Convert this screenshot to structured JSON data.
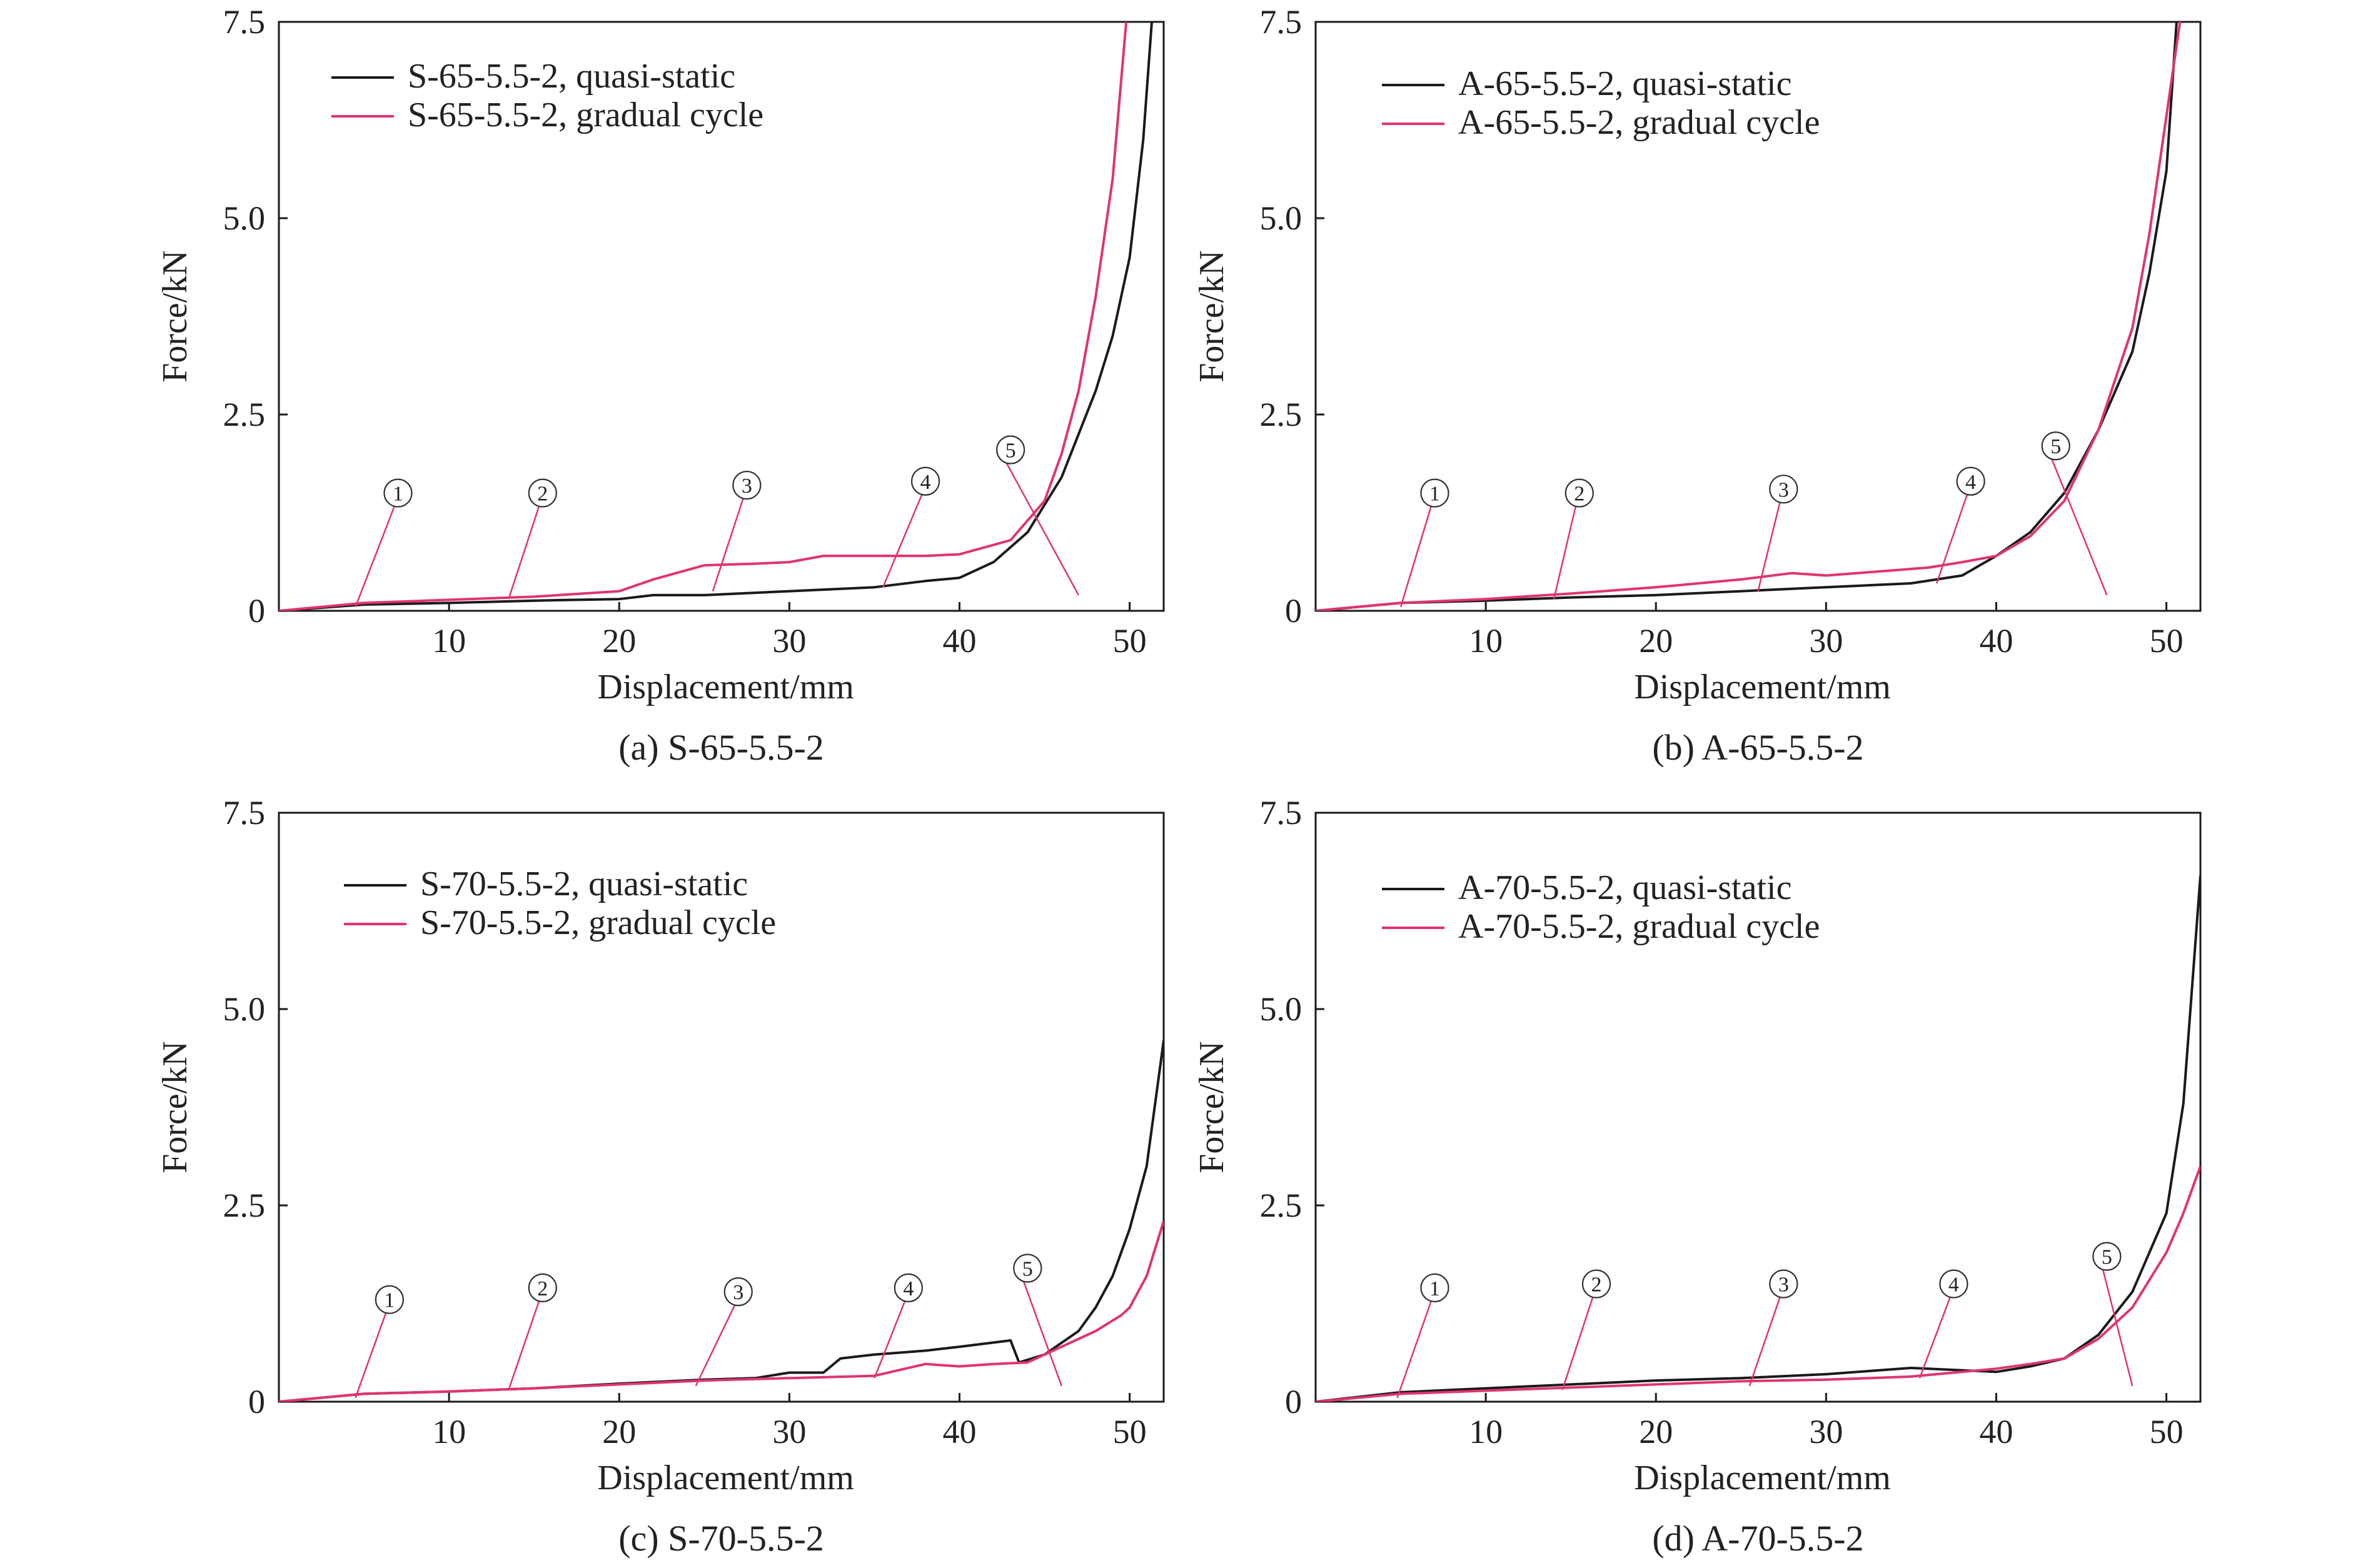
{
  "colors": {
    "quasi_static": "#1a1a1a",
    "gradual_cycle": "#e0356b",
    "gradual_cycle_inner": "#e8551f",
    "axis": "#1a1a1a"
  },
  "chart_data": [
    {
      "type": "line",
      "caption": "(a) S-65-5.5-2",
      "xlabel": "Displacement/mm",
      "ylabel": "Force/kN",
      "xlim": [
        0,
        52
      ],
      "ylim": [
        0,
        7.5
      ],
      "xticks": [
        "10",
        "20",
        "30",
        "40",
        "50"
      ],
      "yticks": [
        "0",
        "2.5",
        "5.0",
        "7.5"
      ],
      "legend_position": "top-left",
      "series": [
        {
          "name": "S-65-5.5-2, quasi-static",
          "role": "quasi_static",
          "points": [
            [
              0,
              0
            ],
            [
              5,
              0.08
            ],
            [
              10,
              0.1
            ],
            [
              15,
              0.13
            ],
            [
              20,
              0.15
            ],
            [
              22,
              0.2
            ],
            [
              25,
              0.2
            ],
            [
              30,
              0.25
            ],
            [
              35,
              0.3
            ],
            [
              38,
              0.38
            ],
            [
              40,
              0.42
            ],
            [
              42,
              0.62
            ],
            [
              44,
              1.0
            ],
            [
              46,
              1.7
            ],
            [
              48,
              2.8
            ],
            [
              49,
              3.5
            ],
            [
              50,
              4.5
            ],
            [
              50.8,
              6
            ],
            [
              51.3,
              7.5
            ]
          ]
        },
        {
          "name": "S-65-5.5-2, gradual cycle",
          "role": "gradual_cycle",
          "points": [
            [
              0,
              0
            ],
            [
              5,
              0.1
            ],
            [
              10,
              0.14
            ],
            [
              15,
              0.18
            ],
            [
              20,
              0.25
            ],
            [
              22,
              0.4
            ],
            [
              25,
              0.58
            ],
            [
              28,
              0.6
            ],
            [
              30,
              0.62
            ],
            [
              32,
              0.7
            ],
            [
              35,
              0.7
            ],
            [
              38,
              0.7
            ],
            [
              40,
              0.72
            ],
            [
              43,
              0.9
            ],
            [
              45,
              1.4
            ],
            [
              46,
              2.0
            ],
            [
              47,
              2.8
            ],
            [
              48,
              4.0
            ],
            [
              49,
              5.5
            ],
            [
              49.8,
              7.5
            ]
          ]
        }
      ],
      "annotations": [
        {
          "label": "①",
          "x_mm": 7.0,
          "y_kN": 1.5,
          "target": [
            4.5,
            0.05
          ]
        },
        {
          "label": "②",
          "x_mm": 15.5,
          "y_kN": 1.5,
          "target": [
            13.5,
            0.15
          ]
        },
        {
          "label": "③",
          "x_mm": 27.5,
          "y_kN": 1.6,
          "target": [
            25.5,
            0.25
          ]
        },
        {
          "label": "④",
          "x_mm": 38.0,
          "y_kN": 1.65,
          "target": [
            35.5,
            0.3
          ]
        },
        {
          "label": "⑤",
          "x_mm": 43.0,
          "y_kN": 2.05,
          "target": [
            47,
            0.2
          ]
        }
      ]
    },
    {
      "type": "line",
      "caption": "(b) A-65-5.5-2",
      "xlabel": "Displacement/mm",
      "ylabel": "Force/kN",
      "xlim": [
        0,
        52
      ],
      "ylim": [
        0,
        7.5
      ],
      "xticks": [
        "10",
        "20",
        "30",
        "40",
        "50"
      ],
      "yticks": [
        "0",
        "2.5",
        "5.0",
        "7.5"
      ],
      "legend_position": "top-left",
      "series": [
        {
          "name": "A-65-5.5-2, quasi-static",
          "role": "quasi_static",
          "points": [
            [
              0,
              0
            ],
            [
              5,
              0.1
            ],
            [
              10,
              0.13
            ],
            [
              15,
              0.17
            ],
            [
              20,
              0.2
            ],
            [
              25,
              0.25
            ],
            [
              30,
              0.3
            ],
            [
              35,
              0.35
            ],
            [
              38,
              0.45
            ],
            [
              40,
              0.7
            ],
            [
              42,
              1.0
            ],
            [
              44,
              1.5
            ],
            [
              46,
              2.3
            ],
            [
              48,
              3.3
            ],
            [
              49,
              4.3
            ],
            [
              50,
              5.6
            ],
            [
              50.6,
              7.5
            ]
          ]
        },
        {
          "name": "A-65-5.5-2, gradual cycle",
          "role": "gradual_cycle",
          "points": [
            [
              0,
              0
            ],
            [
              5,
              0.1
            ],
            [
              10,
              0.15
            ],
            [
              15,
              0.22
            ],
            [
              20,
              0.3
            ],
            [
              25,
              0.4
            ],
            [
              28,
              0.48
            ],
            [
              30,
              0.45
            ],
            [
              33,
              0.5
            ],
            [
              36,
              0.55
            ],
            [
              38,
              0.62
            ],
            [
              40,
              0.7
            ],
            [
              42,
              0.95
            ],
            [
              44,
              1.4
            ],
            [
              46,
              2.3
            ],
            [
              48,
              3.6
            ],
            [
              49,
              4.8
            ],
            [
              50,
              6.3
            ],
            [
              50.8,
              7.5
            ]
          ]
        }
      ],
      "annotations": [
        {
          "label": "①",
          "x_mm": 7.0,
          "y_kN": 1.5,
          "target": [
            5.0,
            0.05
          ]
        },
        {
          "label": "②",
          "x_mm": 15.5,
          "y_kN": 1.5,
          "target": [
            14.0,
            0.15
          ]
        },
        {
          "label": "③",
          "x_mm": 27.5,
          "y_kN": 1.55,
          "target": [
            26.0,
            0.25
          ]
        },
        {
          "label": "④",
          "x_mm": 38.5,
          "y_kN": 1.65,
          "target": [
            36.5,
            0.35
          ]
        },
        {
          "label": "⑤",
          "x_mm": 43.5,
          "y_kN": 2.1,
          "target": [
            46.5,
            0.2
          ]
        }
      ]
    },
    {
      "type": "line",
      "caption": "(c) S-70-5.5-2",
      "xlabel": "Displacement/mm",
      "ylabel": "Force/kN",
      "xlim": [
        0,
        52
      ],
      "ylim": [
        0,
        7.5
      ],
      "xticks": [
        "10",
        "20",
        "30",
        "40",
        "50"
      ],
      "yticks": [
        "0",
        "2.5",
        "5.0",
        "7.5"
      ],
      "legend_position": "top-left",
      "series": [
        {
          "name": "S-70-5.5-2, quasi-static",
          "role": "quasi_static",
          "points": [
            [
              0,
              0
            ],
            [
              5,
              0.1
            ],
            [
              10,
              0.13
            ],
            [
              15,
              0.17
            ],
            [
              20,
              0.23
            ],
            [
              25,
              0.28
            ],
            [
              28,
              0.3
            ],
            [
              30,
              0.37
            ],
            [
              32,
              0.37
            ],
            [
              33,
              0.55
            ],
            [
              35,
              0.6
            ],
            [
              38,
              0.65
            ],
            [
              40,
              0.7
            ],
            [
              43,
              0.78
            ],
            [
              43.5,
              0.5
            ],
            [
              45,
              0.6
            ],
            [
              47,
              0.9
            ],
            [
              48,
              1.2
            ],
            [
              49,
              1.6
            ],
            [
              50,
              2.2
            ],
            [
              51,
              3.0
            ],
            [
              52,
              4.6
            ]
          ]
        },
        {
          "name": "S-70-5.5-2, gradual cycle",
          "role": "gradual_cycle",
          "points": [
            [
              0,
              0
            ],
            [
              5,
              0.1
            ],
            [
              10,
              0.13
            ],
            [
              15,
              0.17
            ],
            [
              20,
              0.22
            ],
            [
              25,
              0.27
            ],
            [
              30,
              0.3
            ],
            [
              35,
              0.33
            ],
            [
              38,
              0.48
            ],
            [
              40,
              0.45
            ],
            [
              42,
              0.48
            ],
            [
              44,
              0.5
            ],
            [
              46,
              0.7
            ],
            [
              48,
              0.9
            ],
            [
              49.5,
              1.1
            ],
            [
              50,
              1.2
            ],
            [
              51,
              1.6
            ],
            [
              52,
              2.3
            ]
          ]
        }
      ],
      "annotations": [
        {
          "label": "①",
          "x_mm": 6.5,
          "y_kN": 1.3,
          "target": [
            4.5,
            0.05
          ]
        },
        {
          "label": "②",
          "x_mm": 15.5,
          "y_kN": 1.45,
          "target": [
            13.5,
            0.15
          ]
        },
        {
          "label": "③",
          "x_mm": 27.0,
          "y_kN": 1.4,
          "target": [
            24.5,
            0.2
          ]
        },
        {
          "label": "④",
          "x_mm": 37.0,
          "y_kN": 1.45,
          "target": [
            35.0,
            0.3
          ]
        },
        {
          "label": "⑤",
          "x_mm": 44.0,
          "y_kN": 1.7,
          "target": [
            46.0,
            0.2
          ]
        }
      ]
    },
    {
      "type": "line",
      "caption": "(d) A-70-5.5-2",
      "xlabel": "Displacement/mm",
      "ylabel": "Force/kN",
      "xlim": [
        0,
        52
      ],
      "ylim": [
        0,
        7.5
      ],
      "xticks": [
        "10",
        "20",
        "30",
        "40",
        "50"
      ],
      "yticks": [
        "0",
        "2.5",
        "5.0",
        "7.5"
      ],
      "legend_position": "top-left",
      "series": [
        {
          "name": "A-70-5.5-2, quasi-static",
          "role": "quasi_static",
          "points": [
            [
              0,
              0
            ],
            [
              5,
              0.12
            ],
            [
              10,
              0.17
            ],
            [
              15,
              0.22
            ],
            [
              20,
              0.27
            ],
            [
              25,
              0.3
            ],
            [
              30,
              0.35
            ],
            [
              35,
              0.43
            ],
            [
              38,
              0.4
            ],
            [
              40,
              0.38
            ],
            [
              42,
              0.45
            ],
            [
              44,
              0.55
            ],
            [
              46,
              0.85
            ],
            [
              48,
              1.4
            ],
            [
              50,
              2.4
            ],
            [
              51,
              3.8
            ],
            [
              52,
              6.7
            ]
          ]
        },
        {
          "name": "A-70-5.5-2, gradual cycle",
          "role": "gradual_cycle",
          "points": [
            [
              0,
              0
            ],
            [
              5,
              0.1
            ],
            [
              10,
              0.14
            ],
            [
              15,
              0.18
            ],
            [
              20,
              0.22
            ],
            [
              25,
              0.26
            ],
            [
              30,
              0.28
            ],
            [
              35,
              0.32
            ],
            [
              38,
              0.38
            ],
            [
              40,
              0.42
            ],
            [
              42,
              0.48
            ],
            [
              44,
              0.55
            ],
            [
              46,
              0.8
            ],
            [
              48,
              1.2
            ],
            [
              50,
              1.9
            ],
            [
              51,
              2.4
            ],
            [
              52,
              3.0
            ]
          ]
        }
      ],
      "annotations": [
        {
          "label": "①",
          "x_mm": 7.0,
          "y_kN": 1.45,
          "target": [
            4.8,
            0.05
          ]
        },
        {
          "label": "②",
          "x_mm": 16.5,
          "y_kN": 1.5,
          "target": [
            14.5,
            0.15
          ]
        },
        {
          "label": "③",
          "x_mm": 27.5,
          "y_kN": 1.5,
          "target": [
            25.5,
            0.2
          ]
        },
        {
          "label": "④",
          "x_mm": 37.5,
          "y_kN": 1.5,
          "target": [
            35.5,
            0.3
          ]
        },
        {
          "label": "⑤",
          "x_mm": 46.5,
          "y_kN": 1.85,
          "target": [
            48.0,
            0.2
          ]
        }
      ]
    }
  ]
}
